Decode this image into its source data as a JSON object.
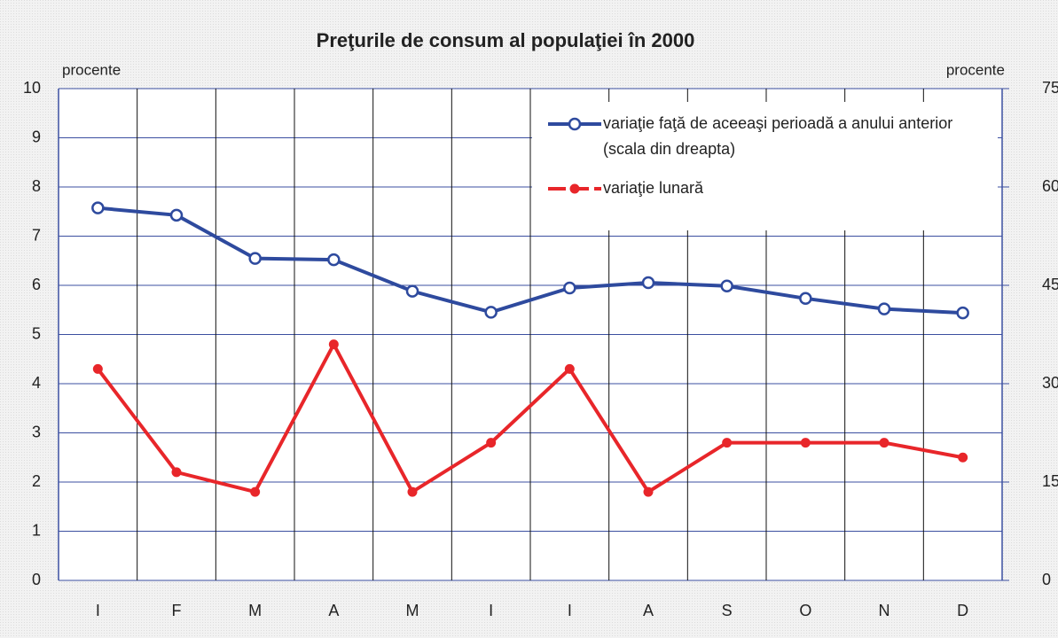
{
  "chart_data": {
    "type": "line",
    "title": "Preţurile de consum al populaţiei în 2000",
    "y_label": "procente",
    "y2_label": "procente",
    "categories": [
      "I",
      "F",
      "M",
      "A",
      "M",
      "I",
      "I",
      "A",
      "S",
      "O",
      "N",
      "D"
    ],
    "series": [
      {
        "name": "variaţie faţă de aceeaşi perioadă a anului anterior (scala din dreapta)",
        "color": "#2e4a9e",
        "axis": "y2",
        "values": [
          56.8,
          55.7,
          49.1,
          48.9,
          44.1,
          40.9,
          44.6,
          45.4,
          44.9,
          43.0,
          41.4,
          40.8
        ]
      },
      {
        "name": "variaţie lunară",
        "color": "#e8262a",
        "values": [
          4.3,
          2.2,
          1.8,
          4.8,
          1.8,
          2.8,
          4.3,
          1.8,
          2.8,
          2.8,
          2.8,
          2.5
        ]
      }
    ],
    "ylim": [
      0,
      10
    ],
    "yticks": [
      0,
      1,
      2,
      3,
      4,
      5,
      6,
      7,
      8,
      9,
      10
    ],
    "y2lim": [
      0,
      75
    ],
    "y2ticks": [
      0,
      15,
      30,
      45,
      60,
      75
    ],
    "grid": true,
    "legend": "upper right"
  }
}
